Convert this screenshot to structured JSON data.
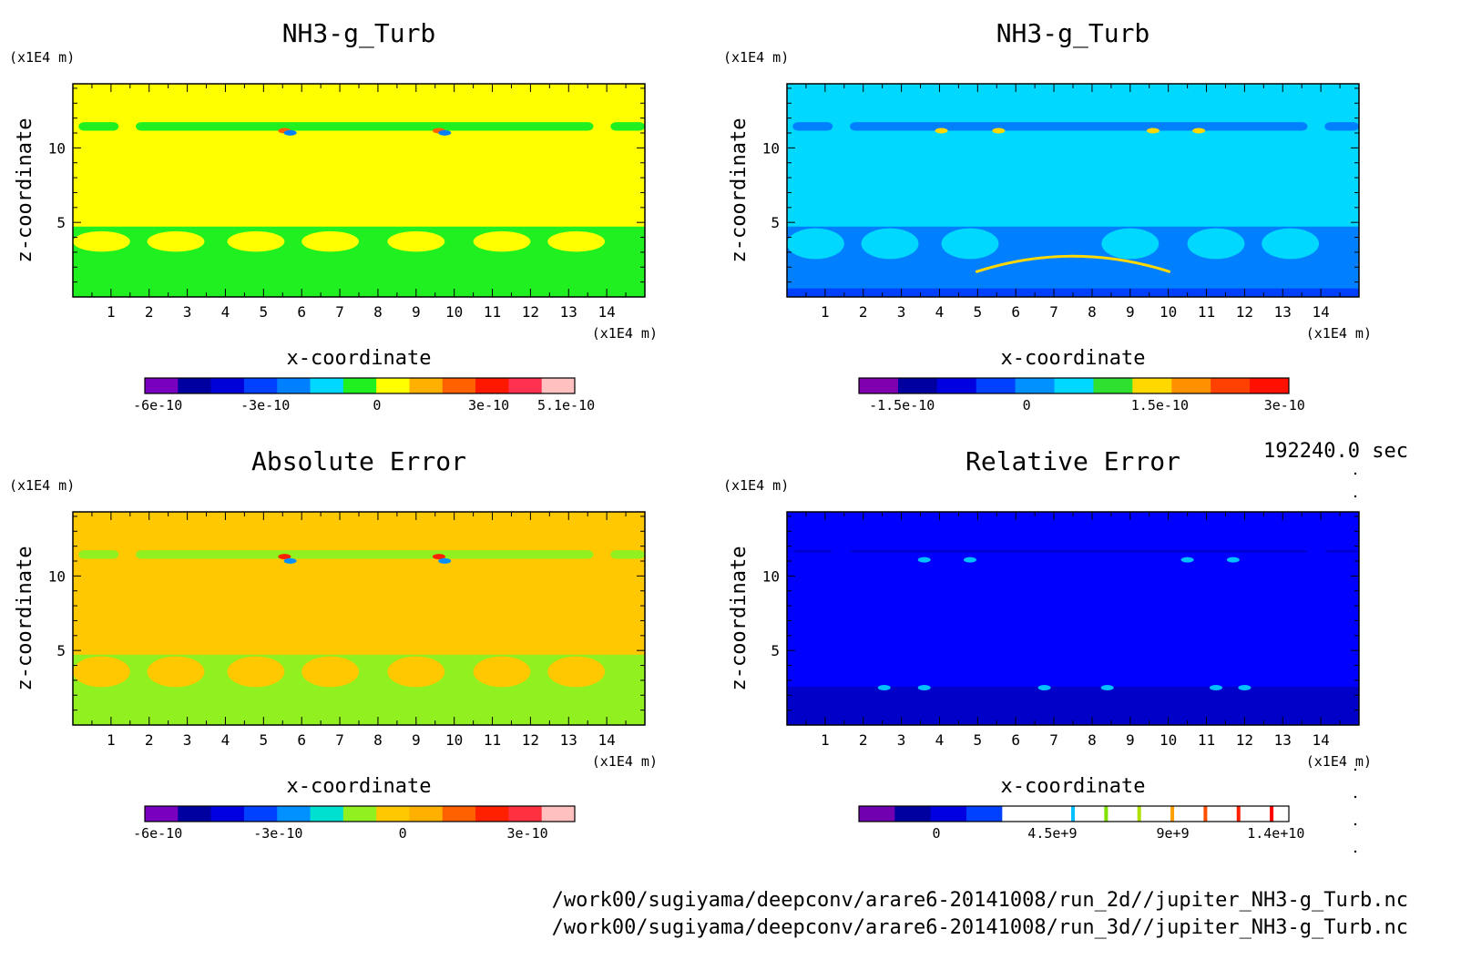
{
  "chart_data": [
    {
      "type": "heatmap",
      "title": "NH3-g_Turb",
      "xlabel": "x-coordinate",
      "ylabel": "z-coordinate",
      "x_unit": "(x1E4 m)",
      "y_unit": "(x1E4 m)",
      "xlim": [
        0,
        15
      ],
      "ylim": [
        0,
        14.3
      ],
      "x_ticks": [
        "1",
        "2",
        "3",
        "4",
        "5",
        "6",
        "7",
        "8",
        "9",
        "10",
        "11",
        "12",
        "13",
        "14"
      ],
      "y_ticks": [
        "5",
        "10"
      ],
      "background_color": "#ffff00",
      "colorbar": {
        "colors": [
          "#7a00c0",
          "#0000a0",
          "#0000d8",
          "#0040ff",
          "#0080ff",
          "#00d8ff",
          "#20f020",
          "#ffff00",
          "#ffb000",
          "#ff6000",
          "#ff1800",
          "#ff3050",
          "#ffc0c0"
        ],
        "tick_labels": [
          "-6e-10",
          "-3e-10",
          "0",
          "3e-10",
          "5.1e-10"
        ]
      }
    },
    {
      "type": "heatmap",
      "title": "NH3-g_Turb",
      "xlabel": "x-coordinate",
      "ylabel": "z-coordinate",
      "x_unit": "(x1E4 m)",
      "y_unit": "(x1E4 m)",
      "xlim": [
        0,
        15
      ],
      "ylim": [
        0,
        14.3
      ],
      "x_ticks": [
        "1",
        "2",
        "3",
        "4",
        "5",
        "6",
        "7",
        "8",
        "9",
        "10",
        "11",
        "12",
        "13",
        "14"
      ],
      "y_ticks": [
        "5",
        "10"
      ],
      "background_color": "#00d8ff",
      "colorbar": {
        "colors": [
          "#8000b0",
          "#0000a0",
          "#0000e0",
          "#0040ff",
          "#0090ff",
          "#00d8ff",
          "#30e030",
          "#ffd800",
          "#ff9000",
          "#ff4000",
          "#ff1000"
        ],
        "tick_labels": [
          "-1.5e-10",
          "0",
          "1.5e-10",
          "3e-10"
        ]
      }
    },
    {
      "type": "heatmap",
      "title": "Absolute Error",
      "xlabel": "x-coordinate",
      "ylabel": "z-coordinate",
      "x_unit": "(x1E4 m)",
      "y_unit": "(x1E4 m)",
      "xlim": [
        0,
        15
      ],
      "ylim": [
        0,
        14.3
      ],
      "x_ticks": [
        "1",
        "2",
        "3",
        "4",
        "5",
        "6",
        "7",
        "8",
        "9",
        "10",
        "11",
        "12",
        "13",
        "14"
      ],
      "y_ticks": [
        "5",
        "10"
      ],
      "background_color": "#ffc800",
      "colorbar": {
        "colors": [
          "#7a00c0",
          "#0000a0",
          "#0000e0",
          "#0040ff",
          "#0090ff",
          "#00e0d0",
          "#90f020",
          "#ffc800",
          "#ffb000",
          "#ff6000",
          "#ff2000",
          "#ff3040",
          "#ffc0c0"
        ],
        "tick_labels": [
          "-6e-10",
          "-3e-10",
          "0",
          "3e-10"
        ]
      }
    },
    {
      "type": "heatmap",
      "title": "Relative Error",
      "xlabel": "x-coordinate",
      "ylabel": "z-coordinate",
      "x_unit": "(x1E4 m)",
      "y_unit": "(x1E4 m)",
      "xlim": [
        0,
        15
      ],
      "ylim": [
        0,
        14.3
      ],
      "x_ticks": [
        "1",
        "2",
        "3",
        "4",
        "5",
        "6",
        "7",
        "8",
        "9",
        "10",
        "11",
        "12",
        "13",
        "14"
      ],
      "y_ticks": [
        "5",
        "10"
      ],
      "background_color": "#0000ff",
      "colorbar": {
        "colors": [
          "#7000b0",
          "#0000a0",
          "#0000e0",
          "#0040ff",
          "#ffffff",
          "#ffffff",
          "#ffffff",
          "#ffffff",
          "#ffffff",
          "#ffffff",
          "#ffffff",
          "#ffffff"
        ],
        "marker_colors": [
          "#00c0ff",
          "#80e000",
          "#b0e000",
          "#ffa000",
          "#ff5000",
          "#ff2000",
          "#ff0000"
        ],
        "tick_labels": [
          "0",
          "4.5e+9",
          "9e+9",
          "1.4e+10"
        ]
      }
    }
  ],
  "time_label": "192240.0 sec",
  "footer_paths": [
    "/work00/sugiyama/deepconv/arare6-20141008/run_2d//jupiter_NH3-g_Turb.nc",
    "/work00/sugiyama/deepconv/arare6-20141008/run_3d//jupiter_NH3-g_Turb.nc"
  ]
}
